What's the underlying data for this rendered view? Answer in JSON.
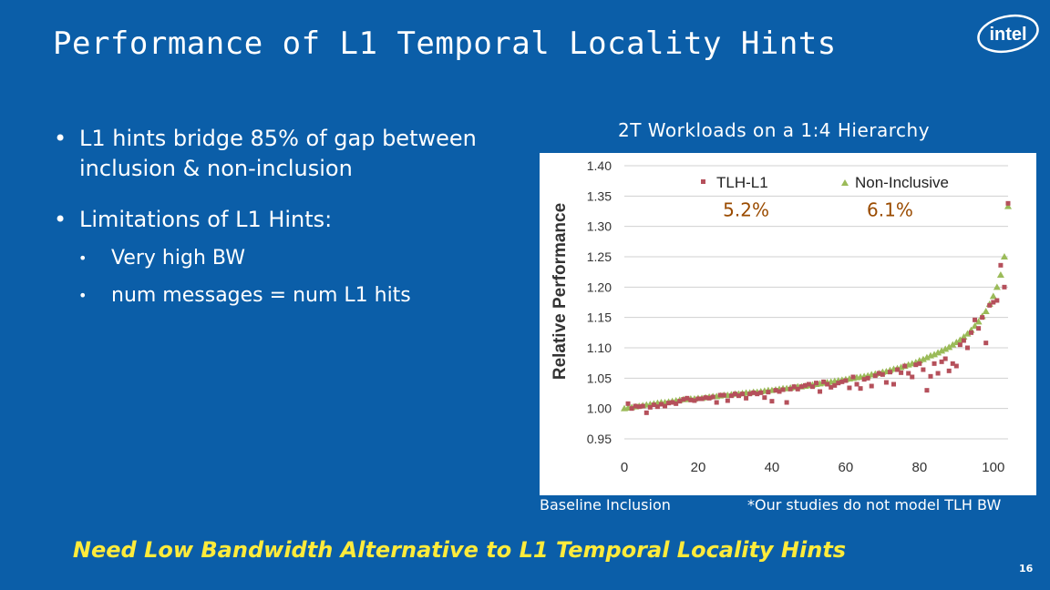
{
  "slide": {
    "title": "Performance of L1 Temporal Locality Hints",
    "logo_text": "intel",
    "bullets": [
      {
        "text": "L1 hints bridge 85% of gap between inclusion & non-inclusion"
      },
      {
        "text": "Limitations of L1 Hints:"
      }
    ],
    "sub_bullets": [
      {
        "text": "Very high BW"
      },
      {
        "text": "num messages = num L1 hits"
      }
    ],
    "chart_title": "2T Workloads on a 1:4 Hierarchy",
    "footnote_left": "Baseline Inclusion",
    "footnote_right": "*Our studies do not model TLH BW",
    "conclusion": "Need Low Bandwidth Alternative to L1 Temporal Locality Hints",
    "page_number": "16",
    "colors": {
      "background": "#0b5ea8",
      "conclusion_text": "#ffeb3b",
      "series_tlh": "#b5505b",
      "series_noninclusive": "#9bbb59"
    }
  },
  "chart_data": {
    "type": "scatter",
    "xlabel": "",
    "ylabel": "Relative Performance",
    "xlim": [
      0,
      104
    ],
    "ylim": [
      0.95,
      1.4
    ],
    "x_ticks": [
      "0",
      "20",
      "40",
      "60",
      "80",
      "100"
    ],
    "y_ticks": [
      "0.95",
      "1.00",
      "1.05",
      "1.10",
      "1.15",
      "1.20",
      "1.25",
      "1.30",
      "1.35",
      "1.40"
    ],
    "grid": "horizontal",
    "legend_position": "top",
    "annotations": [
      {
        "text": "5.2%",
        "x": 33,
        "y": 1.327
      },
      {
        "text": "6.1%",
        "x": 72,
        "y": 1.327
      }
    ],
    "series": [
      {
        "name": "TLH-L1",
        "marker": "square",
        "color": "#b5505b",
        "x": [
          1,
          2,
          3,
          4,
          5,
          6,
          7,
          8,
          9,
          10,
          11,
          12,
          13,
          14,
          15,
          16,
          17,
          18,
          19,
          20,
          21,
          22,
          23,
          24,
          25,
          26,
          27,
          28,
          29,
          30,
          31,
          32,
          33,
          34,
          35,
          36,
          37,
          38,
          39,
          40,
          41,
          42,
          43,
          44,
          45,
          46,
          47,
          48,
          49,
          50,
          51,
          52,
          53,
          54,
          55,
          56,
          57,
          58,
          59,
          60,
          61,
          62,
          63,
          64,
          65,
          66,
          67,
          68,
          69,
          70,
          71,
          72,
          73,
          74,
          75,
          76,
          77,
          78,
          79,
          80,
          81,
          82,
          83,
          84,
          85,
          86,
          87,
          88,
          89,
          90,
          91,
          92,
          93,
          94,
          95,
          96,
          97,
          98,
          99,
          100,
          101,
          102,
          103,
          104
        ],
        "y": [
          1.008,
          1.0,
          1.004,
          1.003,
          1.004,
          0.993,
          1.002,
          1.006,
          1.003,
          1.007,
          1.004,
          1.009,
          1.01,
          1.008,
          1.012,
          1.015,
          1.017,
          1.014,
          1.013,
          1.016,
          1.016,
          1.018,
          1.017,
          1.019,
          1.01,
          1.022,
          1.022,
          1.013,
          1.021,
          1.024,
          1.021,
          1.024,
          1.017,
          1.024,
          1.026,
          1.024,
          1.026,
          1.018,
          1.027,
          1.012,
          1.03,
          1.028,
          1.031,
          1.01,
          1.032,
          1.036,
          1.032,
          1.036,
          1.038,
          1.04,
          1.036,
          1.042,
          1.028,
          1.044,
          1.04,
          1.035,
          1.038,
          1.042,
          1.044,
          1.046,
          1.034,
          1.052,
          1.04,
          1.033,
          1.048,
          1.05,
          1.037,
          1.054,
          1.058,
          1.056,
          1.043,
          1.06,
          1.04,
          1.064,
          1.059,
          1.07,
          1.058,
          1.052,
          1.072,
          1.074,
          1.064,
          1.03,
          1.053,
          1.074,
          1.058,
          1.077,
          1.082,
          1.062,
          1.074,
          1.07,
          1.105,
          1.112,
          1.1,
          1.125,
          1.146,
          1.132,
          1.15,
          1.108,
          1.17,
          1.175,
          1.178,
          1.236,
          1.2,
          1.338
        ]
      },
      {
        "name": "Non-Inclusive",
        "marker": "triangle",
        "color": "#9bbb59",
        "x": [
          0,
          1,
          2,
          3,
          4,
          5,
          6,
          7,
          8,
          9,
          10,
          11,
          12,
          13,
          14,
          15,
          16,
          17,
          18,
          19,
          20,
          21,
          22,
          23,
          24,
          25,
          26,
          27,
          28,
          29,
          30,
          31,
          32,
          33,
          34,
          35,
          36,
          37,
          38,
          39,
          40,
          41,
          42,
          43,
          44,
          45,
          46,
          47,
          48,
          49,
          50,
          51,
          52,
          53,
          54,
          55,
          56,
          57,
          58,
          59,
          60,
          61,
          62,
          63,
          64,
          65,
          66,
          67,
          68,
          69,
          70,
          71,
          72,
          73,
          74,
          75,
          76,
          77,
          78,
          79,
          80,
          81,
          82,
          83,
          84,
          85,
          86,
          87,
          88,
          89,
          90,
          91,
          92,
          93,
          94,
          95,
          96,
          97,
          98,
          99,
          100,
          101,
          102,
          103,
          104
        ],
        "y": [
          1.0,
          1.001,
          1.002,
          1.003,
          1.004,
          1.005,
          1.006,
          1.007,
          1.008,
          1.009,
          1.01,
          1.01,
          1.011,
          1.012,
          1.013,
          1.014,
          1.015,
          1.015,
          1.016,
          1.016,
          1.017,
          1.017,
          1.018,
          1.019,
          1.02,
          1.02,
          1.021,
          1.022,
          1.022,
          1.023,
          1.024,
          1.024,
          1.025,
          1.026,
          1.026,
          1.027,
          1.027,
          1.028,
          1.029,
          1.03,
          1.03,
          1.031,
          1.032,
          1.033,
          1.033,
          1.034,
          1.035,
          1.036,
          1.036,
          1.037,
          1.038,
          1.039,
          1.04,
          1.041,
          1.042,
          1.043,
          1.044,
          1.045,
          1.046,
          1.047,
          1.048,
          1.049,
          1.05,
          1.051,
          1.052,
          1.053,
          1.054,
          1.056,
          1.057,
          1.058,
          1.06,
          1.061,
          1.063,
          1.065,
          1.066,
          1.068,
          1.07,
          1.072,
          1.074,
          1.076,
          1.079,
          1.081,
          1.084,
          1.087,
          1.089,
          1.092,
          1.095,
          1.098,
          1.101,
          1.105,
          1.109,
          1.113,
          1.118,
          1.123,
          1.129,
          1.136,
          1.143,
          1.152,
          1.16,
          1.172,
          1.185,
          1.2,
          1.22,
          1.25,
          1.333
        ]
      }
    ]
  }
}
